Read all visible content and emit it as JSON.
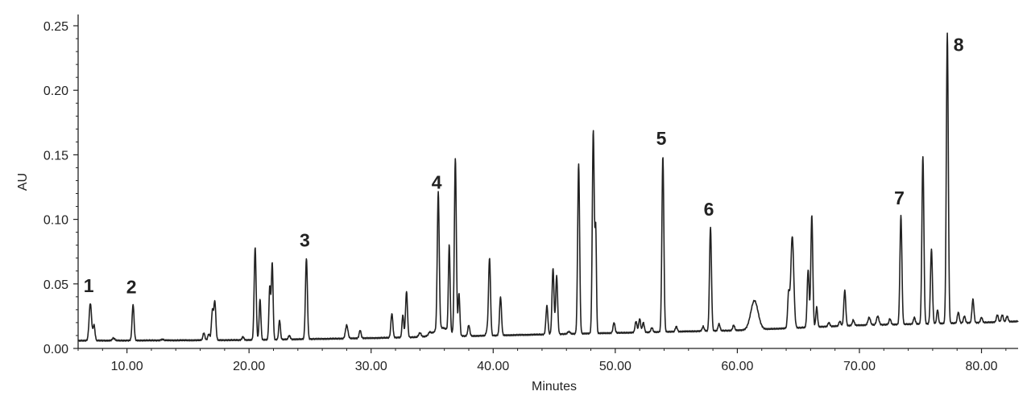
{
  "chart_data": {
    "type": "line",
    "title": "",
    "xlabel": "Minutes",
    "ylabel": "AU",
    "xlim": [
      6,
      83
    ],
    "ylim": [
      0,
      0.25
    ],
    "x_ticks": [
      10,
      20,
      30,
      40,
      50,
      60,
      70,
      80
    ],
    "x_tick_labels": [
      "10.00",
      "20.00",
      "30.00",
      "40.00",
      "50.00",
      "60.00",
      "70.00",
      "80.00"
    ],
    "y_ticks": [
      0,
      0.05,
      0.1,
      0.15,
      0.2,
      0.25
    ],
    "y_tick_labels": [
      "0.00",
      "0.05",
      "0.10",
      "0.15",
      "0.20",
      "0.25"
    ],
    "grid": false,
    "line_color": "#222222",
    "baseline": [
      [
        6,
        0.006
      ],
      [
        20,
        0.0065
      ],
      [
        30,
        0.008
      ],
      [
        40,
        0.01
      ],
      [
        50,
        0.012
      ],
      [
        60,
        0.014
      ],
      [
        70,
        0.018
      ],
      [
        80,
        0.02
      ],
      [
        83,
        0.021
      ]
    ],
    "peaks": [
      {
        "t": 7.0,
        "h": 0.035,
        "w": 0.1
      },
      {
        "t": 7.3,
        "h": 0.018,
        "w": 0.08
      },
      {
        "t": 8.9,
        "h": 0.008,
        "w": 0.1
      },
      {
        "t": 10.5,
        "h": 0.034,
        "w": 0.08
      },
      {
        "t": 12.9,
        "h": 0.007,
        "w": 0.1
      },
      {
        "t": 16.3,
        "h": 0.012,
        "w": 0.08
      },
      {
        "t": 16.7,
        "h": 0.011,
        "w": 0.08
      },
      {
        "t": 17.0,
        "h": 0.029,
        "w": 0.08
      },
      {
        "t": 17.2,
        "h": 0.036,
        "w": 0.08
      },
      {
        "t": 19.5,
        "h": 0.009,
        "w": 0.08
      },
      {
        "t": 20.5,
        "h": 0.078,
        "w": 0.08
      },
      {
        "t": 20.9,
        "h": 0.038,
        "w": 0.07
      },
      {
        "t": 21.7,
        "h": 0.048,
        "w": 0.07
      },
      {
        "t": 21.9,
        "h": 0.066,
        "w": 0.07
      },
      {
        "t": 22.5,
        "h": 0.022,
        "w": 0.07
      },
      {
        "t": 23.3,
        "h": 0.01,
        "w": 0.08
      },
      {
        "t": 24.7,
        "h": 0.07,
        "w": 0.08
      },
      {
        "t": 28.0,
        "h": 0.018,
        "w": 0.1
      },
      {
        "t": 29.1,
        "h": 0.014,
        "w": 0.08
      },
      {
        "t": 31.7,
        "h": 0.027,
        "w": 0.08
      },
      {
        "t": 32.6,
        "h": 0.026,
        "w": 0.07
      },
      {
        "t": 32.9,
        "h": 0.044,
        "w": 0.08
      },
      {
        "t": 34.0,
        "h": 0.012,
        "w": 0.1
      },
      {
        "t": 34.8,
        "h": 0.011,
        "w": 0.1
      },
      {
        "t": 35.8,
        "h": 0.016,
        "w": 0.6
      },
      {
        "t": 35.5,
        "h": 0.115,
        "w": 0.08
      },
      {
        "t": 36.4,
        "h": 0.076,
        "w": 0.07
      },
      {
        "t": 36.9,
        "h": 0.146,
        "w": 0.08
      },
      {
        "t": 37.2,
        "h": 0.042,
        "w": 0.07
      },
      {
        "t": 38.0,
        "h": 0.018,
        "w": 0.08
      },
      {
        "t": 39.5,
        "h": 0.014,
        "w": 0.08
      },
      {
        "t": 39.7,
        "h": 0.07,
        "w": 0.08
      },
      {
        "t": 40.6,
        "h": 0.04,
        "w": 0.08
      },
      {
        "t": 44.4,
        "h": 0.033,
        "w": 0.08
      },
      {
        "t": 44.9,
        "h": 0.062,
        "w": 0.08
      },
      {
        "t": 45.2,
        "h": 0.056,
        "w": 0.08
      },
      {
        "t": 46.2,
        "h": 0.013,
        "w": 0.1
      },
      {
        "t": 47.0,
        "h": 0.143,
        "w": 0.08
      },
      {
        "t": 48.2,
        "h": 0.169,
        "w": 0.08
      },
      {
        "t": 48.4,
        "h": 0.09,
        "w": 0.06
      },
      {
        "t": 49.9,
        "h": 0.02,
        "w": 0.08
      },
      {
        "t": 51.7,
        "h": 0.021,
        "w": 0.08
      },
      {
        "t": 52.0,
        "h": 0.023,
        "w": 0.08
      },
      {
        "t": 52.3,
        "h": 0.02,
        "w": 0.08
      },
      {
        "t": 53.0,
        "h": 0.016,
        "w": 0.08
      },
      {
        "t": 53.9,
        "h": 0.149,
        "w": 0.08
      },
      {
        "t": 55.0,
        "h": 0.017,
        "w": 0.08
      },
      {
        "t": 57.2,
        "h": 0.017,
        "w": 0.08
      },
      {
        "t": 57.8,
        "h": 0.094,
        "w": 0.08
      },
      {
        "t": 58.5,
        "h": 0.019,
        "w": 0.08
      },
      {
        "t": 59.7,
        "h": 0.018,
        "w": 0.08
      },
      {
        "t": 61.4,
        "h": 0.037,
        "w": 0.3
      },
      {
        "t": 64.2,
        "h": 0.042,
        "w": 0.08
      },
      {
        "t": 64.5,
        "h": 0.087,
        "w": 0.12
      },
      {
        "t": 65.8,
        "h": 0.061,
        "w": 0.08
      },
      {
        "t": 66.1,
        "h": 0.103,
        "w": 0.08
      },
      {
        "t": 66.5,
        "h": 0.032,
        "w": 0.07
      },
      {
        "t": 67.5,
        "h": 0.02,
        "w": 0.08
      },
      {
        "t": 68.4,
        "h": 0.021,
        "w": 0.08
      },
      {
        "t": 68.8,
        "h": 0.045,
        "w": 0.08
      },
      {
        "t": 69.5,
        "h": 0.022,
        "w": 0.08
      },
      {
        "t": 70.8,
        "h": 0.024,
        "w": 0.1
      },
      {
        "t": 71.5,
        "h": 0.025,
        "w": 0.1
      },
      {
        "t": 72.5,
        "h": 0.023,
        "w": 0.08
      },
      {
        "t": 73.4,
        "h": 0.103,
        "w": 0.08
      },
      {
        "t": 74.5,
        "h": 0.024,
        "w": 0.08
      },
      {
        "t": 75.2,
        "h": 0.149,
        "w": 0.08
      },
      {
        "t": 75.9,
        "h": 0.077,
        "w": 0.08
      },
      {
        "t": 76.4,
        "h": 0.03,
        "w": 0.07
      },
      {
        "t": 77.2,
        "h": 0.244,
        "w": 0.08
      },
      {
        "t": 78.1,
        "h": 0.028,
        "w": 0.08
      },
      {
        "t": 78.6,
        "h": 0.025,
        "w": 0.08
      },
      {
        "t": 79.3,
        "h": 0.038,
        "w": 0.08
      },
      {
        "t": 80.0,
        "h": 0.024,
        "w": 0.08
      },
      {
        "t": 81.3,
        "h": 0.026,
        "w": 0.08
      },
      {
        "t": 81.7,
        "h": 0.026,
        "w": 0.08
      },
      {
        "t": 82.1,
        "h": 0.025,
        "w": 0.08
      }
    ],
    "peak_labels": [
      {
        "text": "1",
        "t": 7.0,
        "au": 0.035
      },
      {
        "text": "2",
        "t": 10.5,
        "au": 0.034
      },
      {
        "text": "3",
        "t": 24.7,
        "au": 0.07
      },
      {
        "text": "4",
        "t": 35.5,
        "au": 0.115
      },
      {
        "text": "5",
        "t": 53.9,
        "au": 0.149
      },
      {
        "text": "6",
        "t": 57.8,
        "au": 0.094
      },
      {
        "text": "7",
        "t": 73.4,
        "au": 0.103
      },
      {
        "text": "8",
        "t": 77.2,
        "au": 0.244
      }
    ]
  }
}
